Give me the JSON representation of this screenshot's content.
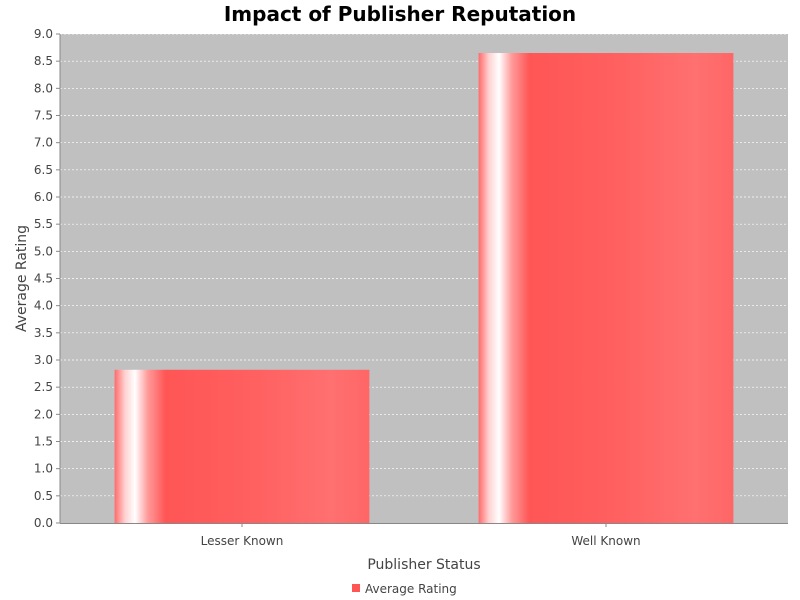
{
  "chart_data": {
    "type": "bar",
    "title": "Impact of Publisher Reputation",
    "xlabel": "Publisher Status",
    "ylabel": "Average Rating",
    "categories": [
      "Lesser Known",
      "Well Known"
    ],
    "series": [
      {
        "name": "Average Rating",
        "values": [
          2.82,
          8.65
        ],
        "color": "#ff5555"
      }
    ],
    "ylim": [
      0,
      9.0
    ],
    "yticks": [
      "0.0",
      "0.5",
      "1.0",
      "1.5",
      "2.0",
      "2.5",
      "3.0",
      "3.5",
      "4.0",
      "4.5",
      "5.0",
      "5.5",
      "6.0",
      "6.5",
      "7.0",
      "7.5",
      "8.0",
      "8.5",
      "9.0"
    ],
    "grid": true,
    "legend": "bottom-center",
    "plot_background": "#c0c0c0"
  }
}
